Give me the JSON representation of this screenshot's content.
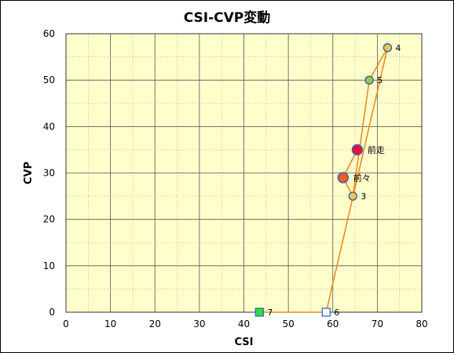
{
  "chart_data": {
    "type": "scatter",
    "title": "CSI-CVP変動",
    "xlabel": "CSI",
    "ylabel": "CVP",
    "xlim": [
      0,
      80
    ],
    "ylim": [
      0,
      60
    ],
    "xticks": [
      "0",
      "10",
      "20",
      "30",
      "40",
      "50",
      "60",
      "70",
      "80"
    ],
    "yticks": [
      "0",
      "10",
      "20",
      "30",
      "40",
      "50",
      "60"
    ],
    "grid": true,
    "plot_background": "#ffffcc",
    "line_color": "#f08a1e",
    "points_in_line_order": [
      {
        "label": "7",
        "x": 43.5,
        "y": 0,
        "marker": "square",
        "fill": "#33dd33",
        "stroke": "#2a5fc4"
      },
      {
        "label": "6",
        "x": 58.5,
        "y": 0,
        "marker": "square",
        "fill": "#ffffff",
        "stroke": "#2a5fc4"
      },
      {
        "label": "4",
        "x": 72.3,
        "y": 57,
        "marker": "circle",
        "fill": "#ffc83c",
        "stroke": "#2a5fc4"
      },
      {
        "label": "5",
        "x": 68.2,
        "y": 50,
        "marker": "circle",
        "fill": "#9acd32",
        "stroke": "#2a5fc4"
      },
      {
        "label": "3",
        "x": 64.5,
        "y": 25,
        "marker": "circle",
        "fill": "#ffc83c",
        "stroke": "#2a5fc4"
      },
      {
        "label": "前々",
        "x": 62.3,
        "y": 29,
        "marker": "circle-large",
        "fill": "#ff5a1e",
        "stroke": "#2a5fc4"
      },
      {
        "label": "前走",
        "x": 65.5,
        "y": 35,
        "marker": "circle-large",
        "fill": "#ee1133",
        "stroke": "#2a5fc4"
      }
    ]
  }
}
